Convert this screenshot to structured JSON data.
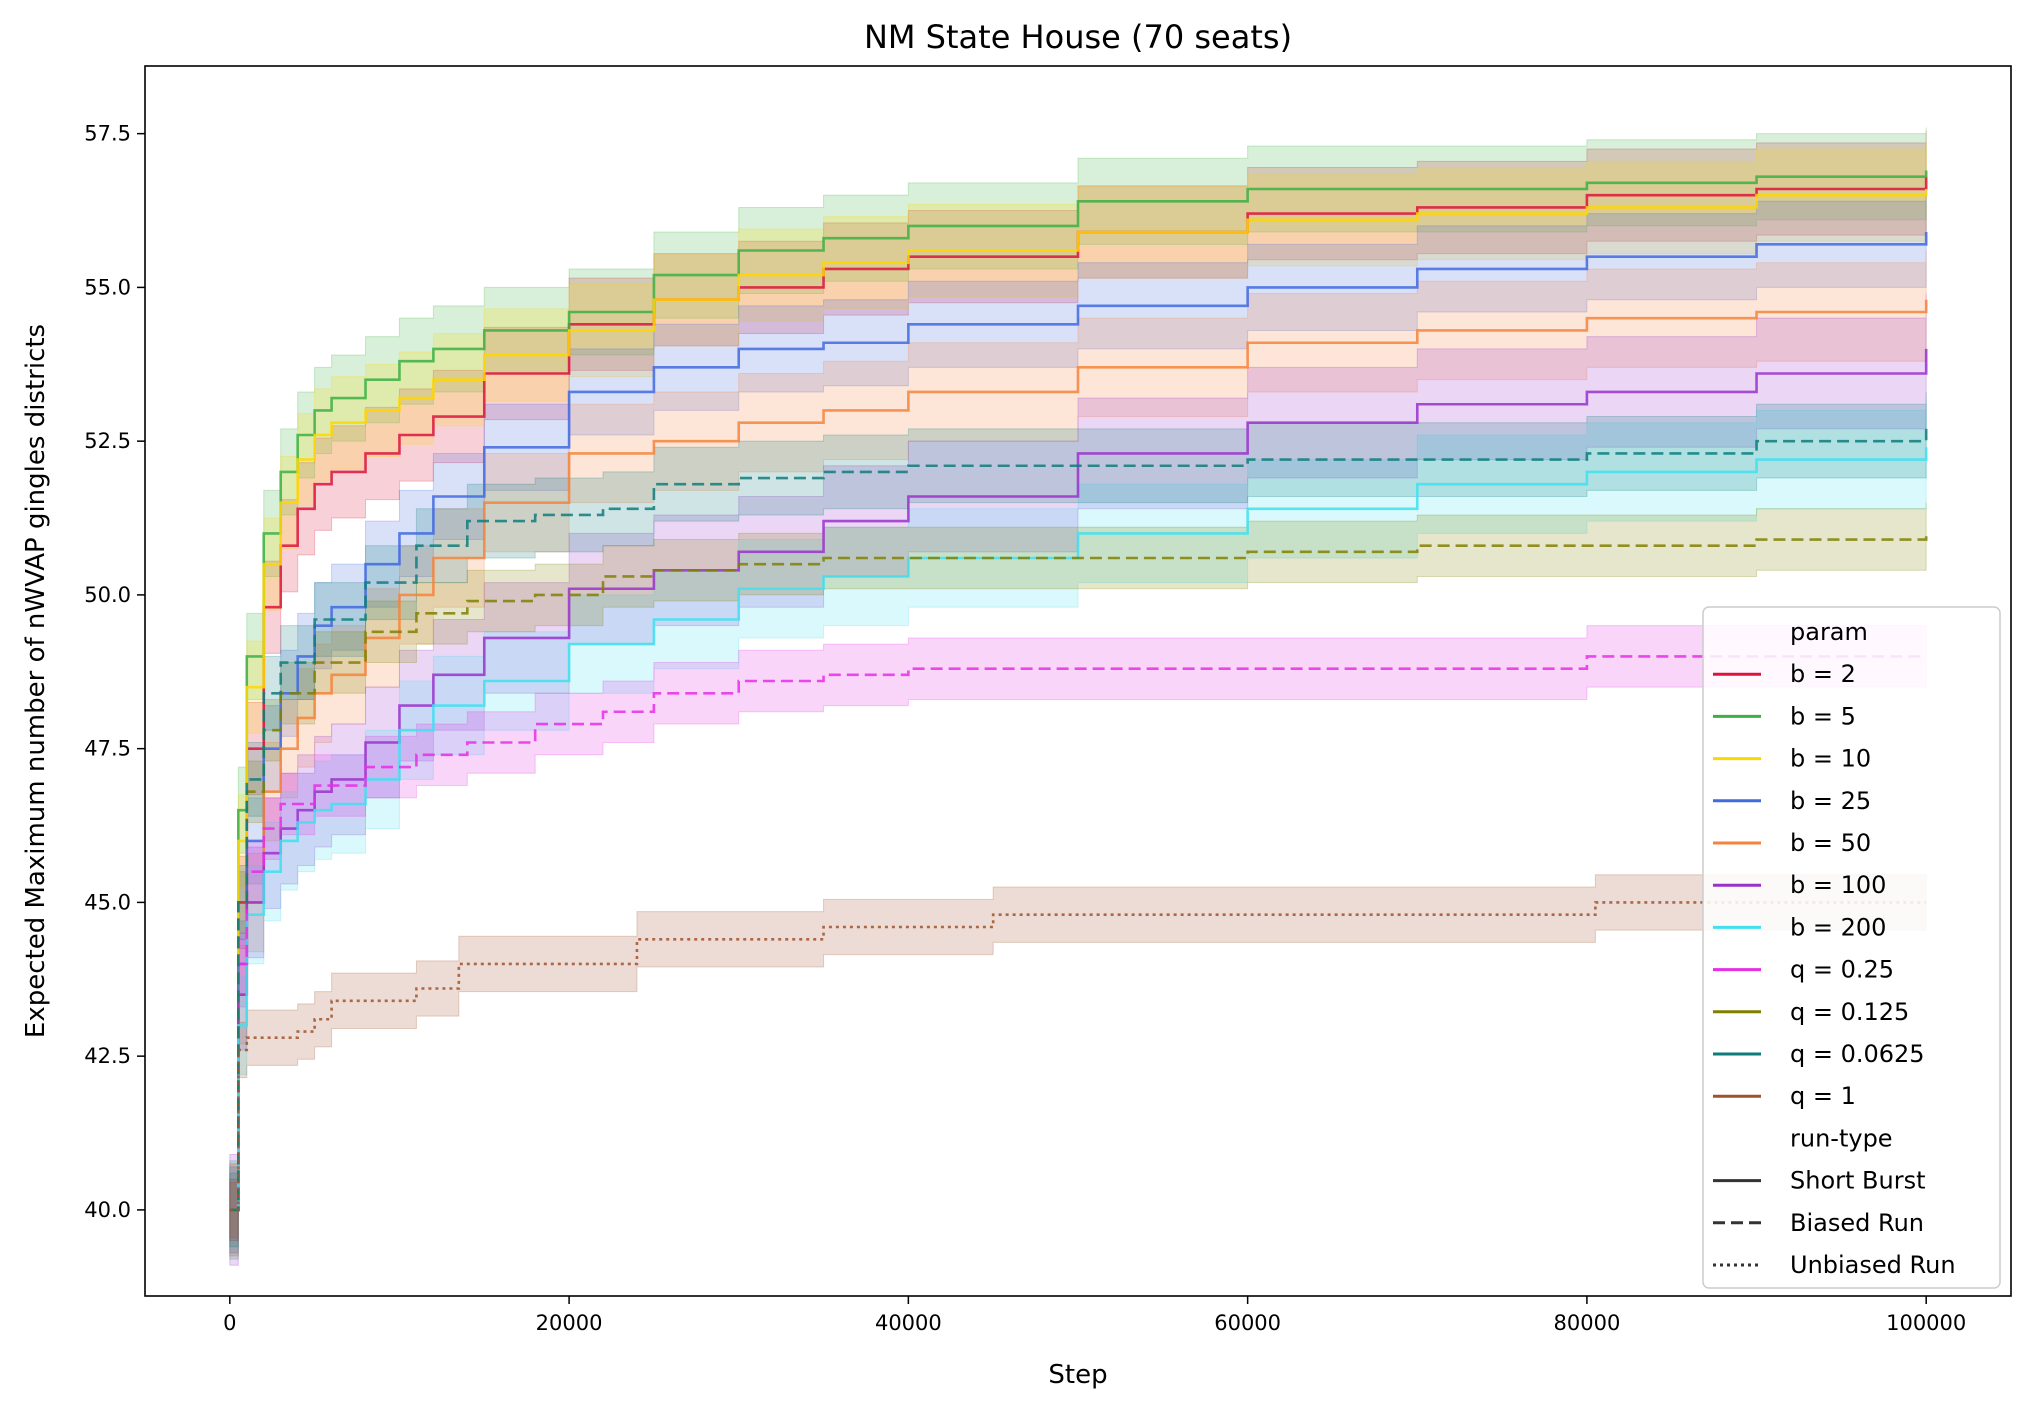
{
  "chart_data": {
    "type": "line",
    "title": "NM State House (70 seats)",
    "xlabel": "Step",
    "ylabel": "Expected Maximum number of nWVAP gingles districts",
    "xlim": [
      -5000,
      105000
    ],
    "ylim": [
      38.6,
      58.6
    ],
    "xticks": [
      0,
      20000,
      40000,
      60000,
      80000,
      100000
    ],
    "xtick_labels": [
      "0",
      "20000",
      "40000",
      "60000",
      "80000",
      "100000"
    ],
    "yticks": [
      40.0,
      42.5,
      45.0,
      47.5,
      50.0,
      52.5,
      55.0,
      57.5
    ],
    "ytick_labels": [
      "40.0",
      "42.5",
      "45.0",
      "47.5",
      "50.0",
      "52.5",
      "55.0",
      "57.5"
    ],
    "grid": false,
    "legend_position": "lower right",
    "legend_param_title": "param",
    "legend_runtype_title": "run-type",
    "run_types": [
      {
        "name": "Short Burst",
        "dash": "solid"
      },
      {
        "name": "Biased Run",
        "dash": "dashed"
      },
      {
        "name": "Unbiased Run",
        "dash": "dotted"
      }
    ],
    "series": [
      {
        "name": "b = 2",
        "run_type": "Short Burst",
        "color": "#dc143c",
        "band": 0.75,
        "x": [
          0,
          500,
          1000,
          2000,
          3000,
          4000,
          5000,
          6000,
          8000,
          10000,
          12000,
          15000,
          20000,
          25000,
          30000,
          35000,
          40000,
          50000,
          60000,
          70000,
          80000,
          90000,
          100000
        ],
        "y": [
          40.0,
          45.0,
          47.5,
          49.8,
          50.8,
          51.4,
          51.8,
          52.0,
          52.3,
          52.6,
          52.9,
          53.6,
          54.4,
          54.8,
          55.0,
          55.3,
          55.5,
          55.9,
          56.2,
          56.3,
          56.5,
          56.6,
          56.8
        ]
      },
      {
        "name": "b = 5",
        "run_type": "Short Burst",
        "color": "#3cb043",
        "band": 0.7,
        "x": [
          0,
          500,
          1000,
          2000,
          3000,
          4000,
          5000,
          6000,
          8000,
          10000,
          12000,
          15000,
          20000,
          25000,
          30000,
          35000,
          40000,
          50000,
          60000,
          70000,
          80000,
          90000,
          100000
        ],
        "y": [
          40.0,
          46.5,
          49.0,
          51.0,
          52.0,
          52.6,
          53.0,
          53.2,
          53.5,
          53.8,
          54.0,
          54.3,
          54.6,
          55.2,
          55.6,
          55.8,
          56.0,
          56.4,
          56.6,
          56.6,
          56.7,
          56.8,
          56.9
        ]
      },
      {
        "name": "b = 10",
        "run_type": "Short Burst",
        "color": "#ffd700",
        "band": 0.75,
        "x": [
          0,
          500,
          1000,
          2000,
          3000,
          4000,
          5000,
          6000,
          8000,
          10000,
          12000,
          15000,
          20000,
          25000,
          30000,
          35000,
          40000,
          50000,
          60000,
          70000,
          80000,
          90000,
          100000
        ],
        "y": [
          40.0,
          46.0,
          48.5,
          50.5,
          51.5,
          52.2,
          52.6,
          52.8,
          53.0,
          53.2,
          53.5,
          53.9,
          54.3,
          54.8,
          55.2,
          55.4,
          55.6,
          55.9,
          56.1,
          56.2,
          56.3,
          56.5,
          56.6
        ]
      },
      {
        "name": "b = 25",
        "run_type": "Short Burst",
        "color": "#4169e1",
        "band": 0.7,
        "x": [
          0,
          500,
          1000,
          2000,
          3000,
          4000,
          5000,
          6000,
          8000,
          10000,
          12000,
          15000,
          20000,
          25000,
          30000,
          35000,
          40000,
          50000,
          60000,
          70000,
          80000,
          90000,
          100000
        ],
        "y": [
          40.0,
          44.0,
          46.0,
          47.5,
          48.4,
          49.0,
          49.5,
          49.8,
          50.5,
          51.0,
          51.6,
          52.4,
          53.3,
          53.7,
          54.0,
          54.1,
          54.4,
          54.7,
          55.0,
          55.3,
          55.5,
          55.7,
          55.9
        ]
      },
      {
        "name": "b = 50",
        "run_type": "Short Burst",
        "color": "#f4843c",
        "band": 0.8,
        "x": [
          0,
          500,
          1000,
          2000,
          3000,
          4000,
          5000,
          6000,
          8000,
          10000,
          12000,
          15000,
          20000,
          25000,
          30000,
          35000,
          40000,
          50000,
          60000,
          70000,
          80000,
          90000,
          100000
        ],
        "y": [
          40.0,
          43.5,
          45.0,
          46.8,
          47.5,
          48.0,
          48.4,
          48.7,
          49.3,
          50.0,
          50.6,
          51.5,
          52.3,
          52.5,
          52.8,
          53.0,
          53.3,
          53.7,
          54.1,
          54.3,
          54.5,
          54.6,
          54.8
        ]
      },
      {
        "name": "b = 100",
        "run_type": "Short Burst",
        "color": "#9932cc",
        "band": 0.9,
        "x": [
          0,
          500,
          1000,
          2000,
          3000,
          4000,
          5000,
          6000,
          8000,
          10000,
          12000,
          15000,
          20000,
          25000,
          30000,
          35000,
          40000,
          50000,
          60000,
          70000,
          80000,
          90000,
          100000
        ],
        "y": [
          40.0,
          43.5,
          45.0,
          45.8,
          46.2,
          46.5,
          46.8,
          47.0,
          47.6,
          48.2,
          48.7,
          49.3,
          50.1,
          50.4,
          50.7,
          51.2,
          51.6,
          52.3,
          52.8,
          53.1,
          53.3,
          53.6,
          54.0
        ]
      },
      {
        "name": "b = 200",
        "run_type": "Short Burst",
        "color": "#40e0f0",
        "band": 0.8,
        "x": [
          0,
          500,
          1000,
          2000,
          3000,
          4000,
          5000,
          6000,
          8000,
          10000,
          12000,
          15000,
          20000,
          25000,
          30000,
          35000,
          40000,
          50000,
          60000,
          70000,
          80000,
          90000,
          100000
        ],
        "y": [
          40.0,
          43.0,
          44.8,
          45.5,
          46.0,
          46.3,
          46.5,
          46.6,
          47.0,
          47.8,
          48.2,
          48.6,
          49.2,
          49.6,
          50.1,
          50.3,
          50.6,
          51.0,
          51.4,
          51.8,
          52.0,
          52.2,
          52.4
        ]
      },
      {
        "name": "q = 0.25",
        "run_type": "Biased Run",
        "color": "#e62ee6",
        "band": 0.5,
        "x": [
          0,
          500,
          1000,
          2000,
          3000,
          5000,
          8000,
          11000,
          14000,
          18000,
          22000,
          25000,
          30000,
          35000,
          40000,
          50000,
          60000,
          70000,
          80000,
          90000,
          100000
        ],
        "y": [
          40.0,
          44.0,
          45.5,
          46.2,
          46.6,
          46.9,
          47.2,
          47.4,
          47.6,
          47.9,
          48.1,
          48.4,
          48.6,
          48.7,
          48.8,
          48.8,
          48.8,
          48.8,
          49.0,
          49.0,
          49.0
        ]
      },
      {
        "name": "q = 0.125",
        "run_type": "Biased Run",
        "color": "#808000",
        "band": 0.5,
        "x": [
          0,
          500,
          1000,
          2000,
          3000,
          5000,
          8000,
          11000,
          14000,
          18000,
          22000,
          25000,
          30000,
          35000,
          40000,
          50000,
          60000,
          70000,
          80000,
          90000,
          100000
        ],
        "y": [
          40.0,
          45.0,
          46.8,
          47.8,
          48.4,
          48.9,
          49.4,
          49.7,
          49.9,
          50.0,
          50.3,
          50.4,
          50.5,
          50.6,
          50.6,
          50.6,
          50.7,
          50.8,
          50.8,
          50.9,
          51.0
        ]
      },
      {
        "name": "q = 0.0625",
        "run_type": "Biased Run",
        "color": "#0e7c7b",
        "band": 0.6,
        "x": [
          0,
          500,
          1000,
          2000,
          3000,
          5000,
          8000,
          11000,
          14000,
          18000,
          22000,
          25000,
          30000,
          35000,
          40000,
          50000,
          60000,
          70000,
          80000,
          90000,
          100000
        ],
        "y": [
          40.0,
          45.0,
          47.0,
          48.4,
          48.9,
          49.6,
          50.2,
          50.8,
          51.2,
          51.3,
          51.4,
          51.8,
          51.9,
          52.0,
          52.1,
          52.1,
          52.2,
          52.2,
          52.3,
          52.5,
          52.7
        ]
      },
      {
        "name": "q = 1",
        "run_type": "Unbiased Run",
        "color": "#a0522d",
        "band": 0.45,
        "x": [
          0,
          500,
          1000,
          4000,
          5000,
          6000,
          9000,
          11000,
          13000,
          13500,
          23500,
          24000,
          34500,
          35000,
          44500,
          45000,
          80000,
          80500,
          100000
        ],
        "y": [
          40.0,
          42.6,
          42.8,
          42.9,
          43.1,
          43.4,
          43.4,
          43.6,
          43.6,
          44.0,
          44.0,
          44.4,
          44.4,
          44.6,
          44.6,
          44.8,
          44.8,
          45.0,
          45.0
        ]
      }
    ]
  }
}
